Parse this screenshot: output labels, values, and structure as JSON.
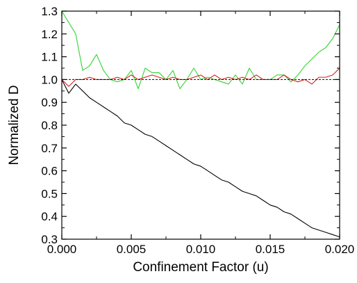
{
  "chart_data": {
    "type": "line",
    "title": "",
    "xlabel": "Confinement Factor (u)",
    "ylabel": "Normalized D",
    "xlim": [
      0.0,
      0.02
    ],
    "ylim": [
      0.3,
      1.3
    ],
    "x_ticks": [
      "0.000",
      "0.005",
      "0.010",
      "0.015",
      "0.020"
    ],
    "x_tick_values": [
      0.0,
      0.005,
      0.01,
      0.015,
      0.02
    ],
    "y_ticks": [
      "0.3",
      "0.4",
      "0.5",
      "0.6",
      "0.7",
      "0.8",
      "0.9",
      "1.0",
      "1.1",
      "1.2",
      "1.3"
    ],
    "y_tick_values": [
      0.3,
      0.4,
      0.5,
      0.6,
      0.7,
      0.8,
      0.9,
      1.0,
      1.1,
      1.2,
      1.3
    ],
    "grid": false,
    "legend": "none",
    "reference_line": {
      "y": 1.0,
      "style": "dashed",
      "color": "#000000"
    },
    "x": [
      0.0,
      0.0005,
      0.001,
      0.0015,
      0.002,
      0.0025,
      0.003,
      0.0035,
      0.004,
      0.0045,
      0.005,
      0.0055,
      0.006,
      0.0065,
      0.007,
      0.0075,
      0.008,
      0.0085,
      0.009,
      0.0095,
      0.01,
      0.0105,
      0.011,
      0.0115,
      0.012,
      0.0125,
      0.013,
      0.0135,
      0.014,
      0.0145,
      0.015,
      0.0155,
      0.016,
      0.0165,
      0.017,
      0.0175,
      0.018,
      0.0185,
      0.019,
      0.0195,
      0.02
    ],
    "series": [
      {
        "color": "#000000",
        "values": [
          1.0,
          0.94,
          0.98,
          0.95,
          0.92,
          0.9,
          0.88,
          0.86,
          0.84,
          0.81,
          0.8,
          0.78,
          0.76,
          0.75,
          0.73,
          0.71,
          0.69,
          0.67,
          0.65,
          0.63,
          0.62,
          0.6,
          0.58,
          0.56,
          0.55,
          0.53,
          0.51,
          0.5,
          0.49,
          0.47,
          0.45,
          0.44,
          0.42,
          0.41,
          0.39,
          0.37,
          0.35,
          0.34,
          0.33,
          0.32,
          0.31
        ]
      },
      {
        "color": "#32d232",
        "values": [
          1.3,
          1.25,
          1.2,
          1.04,
          1.06,
          1.11,
          1.04,
          1.0,
          0.99,
          1.0,
          1.04,
          0.96,
          1.05,
          1.03,
          1.03,
          1.0,
          1.04,
          0.96,
          1.0,
          1.05,
          1.0,
          1.01,
          1.0,
          0.99,
          0.98,
          1.02,
          0.98,
          1.05,
          1.0,
          1.0,
          1.0,
          1.02,
          1.02,
          0.99,
          1.02,
          1.06,
          1.09,
          1.12,
          1.14,
          1.18,
          1.24
        ]
      },
      {
        "color": "#d21e1e",
        "values": [
          1.0,
          0.97,
          1.0,
          1.0,
          1.01,
          1.0,
          1.0,
          1.0,
          1.01,
          1.0,
          1.02,
          1.0,
          1.01,
          1.02,
          1.01,
          1.0,
          1.01,
          1.0,
          1.0,
          1.01,
          1.02,
          1.0,
          1.02,
          1.0,
          1.01,
          1.0,
          1.01,
          1.0,
          1.02,
          1.0,
          1.0,
          1.0,
          1.02,
          1.0,
          0.99,
          1.0,
          0.98,
          1.01,
          1.01,
          1.02,
          1.05
        ]
      }
    ]
  }
}
